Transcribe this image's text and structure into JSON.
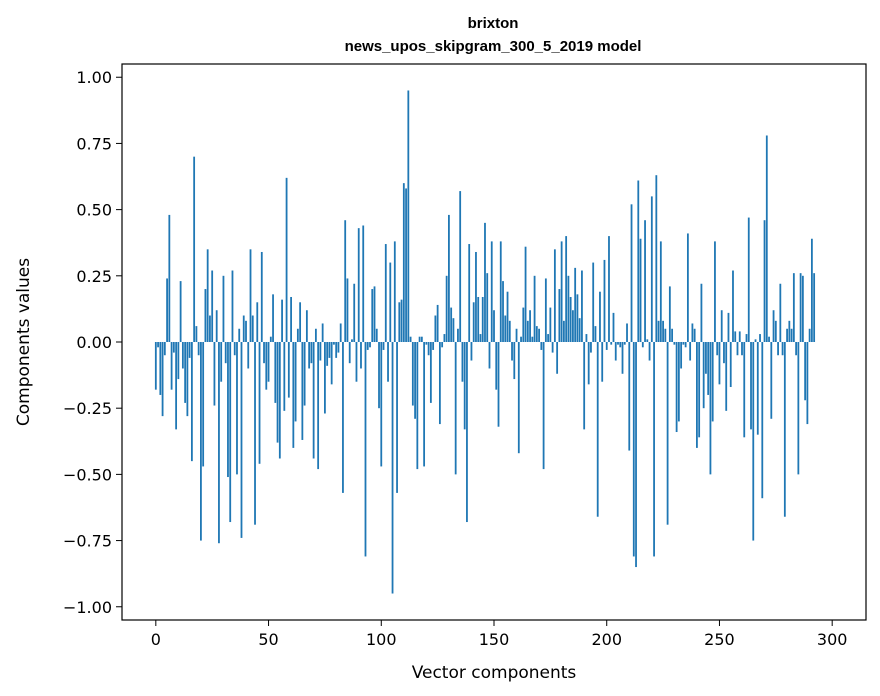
{
  "chart_data": {
    "type": "bar",
    "title": "brixton",
    "subtitle": "news_upos_skipgram_300_5_2019 model",
    "xlabel": "Vector components",
    "ylabel": "Components values",
    "xlim": [
      -15,
      315
    ],
    "ylim": [
      -1.05,
      1.05
    ],
    "xticks": [
      0,
      50,
      100,
      150,
      200,
      250,
      300
    ],
    "yticks": [
      1.0,
      0.75,
      0.5,
      0.25,
      0.0,
      -0.25,
      -0.5,
      -0.75,
      -1.0
    ],
    "ytick_labels": [
      "1.00",
      "0.75",
      "0.50",
      "0.25",
      "0.00",
      "−0.25",
      "−0.50",
      "−0.75",
      "−1.00"
    ],
    "bar_color": "#1f77b4",
    "grid": false,
    "values": [
      -0.18,
      -0.02,
      -0.2,
      -0.28,
      -0.05,
      0.24,
      0.48,
      -0.18,
      -0.04,
      -0.33,
      -0.14,
      0.23,
      -0.1,
      -0.23,
      -0.28,
      -0.06,
      -0.45,
      0.7,
      0.06,
      -0.05,
      -0.75,
      -0.47,
      0.2,
      0.35,
      0.1,
      0.27,
      -0.24,
      0.12,
      -0.76,
      -0.15,
      0.25,
      -0.08,
      -0.51,
      -0.68,
      0.27,
      -0.05,
      -0.5,
      0.05,
      -0.74,
      0.1,
      0.08,
      -0.1,
      0.35,
      0.1,
      -0.69,
      0.15,
      -0.46,
      0.34,
      -0.08,
      -0.18,
      -0.15,
      0.02,
      0.18,
      -0.23,
      -0.38,
      -0.44,
      0.16,
      -0.26,
      0.62,
      -0.21,
      0.17,
      -0.4,
      -0.3,
      0.05,
      0.15,
      -0.37,
      -0.24,
      0.12,
      -0.1,
      -0.08,
      -0.44,
      0.05,
      -0.48,
      -0.07,
      0.07,
      -0.27,
      -0.09,
      -0.06,
      -0.16,
      -0.01,
      -0.06,
      -0.04,
      0.07,
      -0.57,
      0.46,
      0.24,
      -0.08,
      0.01,
      0.22,
      -0.15,
      0.43,
      -0.1,
      0.44,
      -0.81,
      -0.03,
      -0.02,
      0.2,
      0.21,
      0.05,
      -0.25,
      -0.47,
      -0.03,
      0.37,
      -0.15,
      0.3,
      -0.95,
      0.38,
      -0.57,
      0.15,
      0.16,
      0.6,
      0.58,
      0.95,
      0.02,
      -0.24,
      -0.29,
      -0.48,
      0.02,
      0.02,
      -0.47,
      -0.01,
      -0.05,
      -0.23,
      -0.03,
      0.1,
      0.14,
      -0.31,
      -0.02,
      0.03,
      0.25,
      0.48,
      0.13,
      0.09,
      -0.5,
      0.05,
      0.57,
      -0.15,
      -0.33,
      -0.68,
      0.37,
      -0.07,
      0.15,
      0.34,
      0.17,
      0.03,
      0.17,
      0.45,
      0.26,
      -0.1,
      0.38,
      0.12,
      -0.18,
      -0.32,
      0.38,
      0.23,
      0.1,
      0.19,
      0.08,
      -0.07,
      -0.14,
      0.05,
      -0.42,
      0.02,
      0.13,
      0.36,
      0.08,
      0.12,
      0.02,
      0.25,
      0.06,
      0.05,
      -0.03,
      -0.48,
      0.24,
      0.03,
      0.13,
      -0.04,
      0.35,
      -0.12,
      0.2,
      0.38,
      0.08,
      0.4,
      0.25,
      0.17,
      0.12,
      0.28,
      0.18,
      0.09,
      0.27,
      -0.33,
      0.03,
      -0.16,
      -0.04,
      0.3,
      0.06,
      -0.66,
      0.19,
      -0.15,
      0.31,
      -0.03,
      0.4,
      -0.01,
      0.11,
      -0.07,
      -0.01,
      -0.02,
      -0.12,
      -0.01,
      0.07,
      -0.41,
      0.52,
      -0.81,
      -0.85,
      0.61,
      0.39,
      -0.02,
      0.46,
      0.01,
      -0.07,
      0.55,
      -0.81,
      0.63,
      0.08,
      0.38,
      0.08,
      0.05,
      -0.69,
      0.21,
      0.05,
      -0.01,
      -0.34,
      -0.3,
      -0.1,
      -0.01,
      -0.02,
      0.41,
      -0.07,
      0.07,
      0.05,
      -0.4,
      -0.36,
      0.22,
      -0.25,
      -0.12,
      -0.2,
      -0.5,
      -0.3,
      0.38,
      -0.05,
      -0.16,
      0.12,
      -0.08,
      -0.26,
      0.11,
      -0.17,
      0.27,
      0.04,
      -0.05,
      0.04,
      -0.05,
      -0.36,
      0.03,
      0.47,
      -0.33,
      -0.75,
      0.01,
      -0.35,
      0.03,
      -0.59,
      0.46,
      0.78,
      0.02,
      -0.29,
      0.12,
      0.08,
      -0.05,
      0.22,
      -0.05,
      -0.66,
      0.05,
      0.08,
      0.05,
      0.26,
      -0.05,
      -0.5,
      0.26,
      0.25,
      -0.22,
      -0.31,
      0.05,
      0.39,
      0.26
    ]
  }
}
